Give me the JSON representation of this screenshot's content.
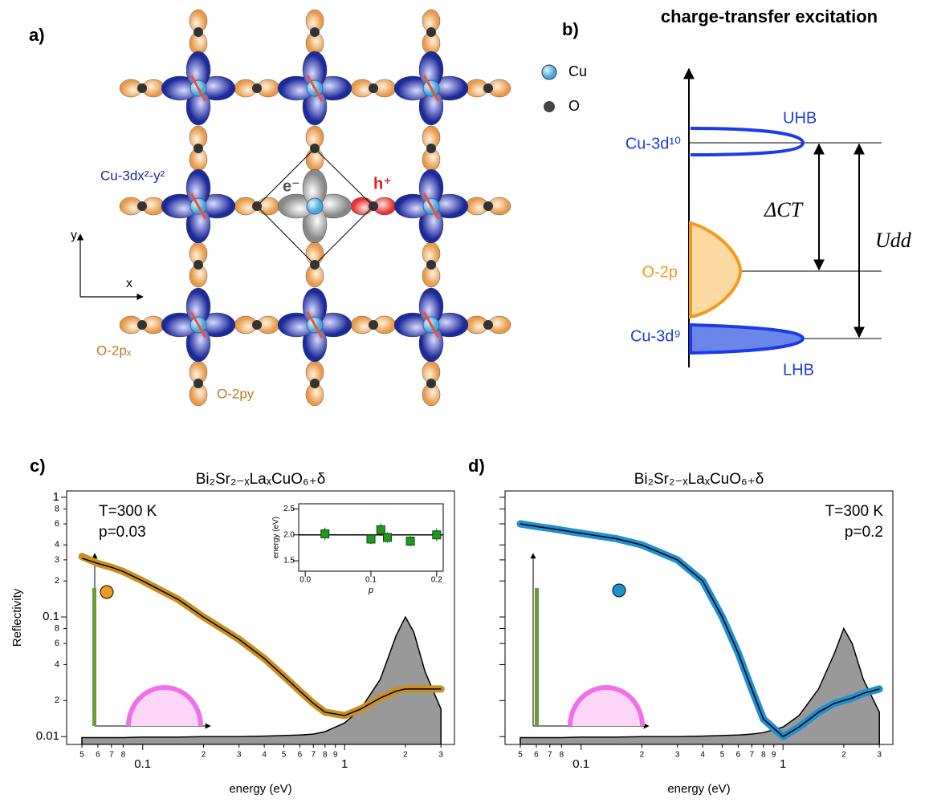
{
  "panel_a": {
    "label": "a)",
    "orbital_cu": "Cu-3dx²-y²",
    "electron": "e⁻",
    "hole": "h⁺",
    "axis_y": "y",
    "axis_x": "x",
    "orbital_px": "O-2pₓ",
    "orbital_py": "O-2py"
  },
  "panel_b": {
    "label": "b)",
    "title": "charge-transfer excitation",
    "legend": [
      "Cu",
      "O"
    ],
    "levels": {
      "uhb": "UHB",
      "cu_3d10": "Cu-3d¹⁰",
      "o_2p": "O-2p",
      "cu_3d9": "Cu-3d⁹",
      "lhb": "LHB"
    },
    "gaps": {
      "delta_ct": "ΔCT",
      "u_dd": "Udd"
    }
  },
  "chart_data": [
    {
      "type": "line",
      "panel_label": "c)",
      "title": "Bi₂Sr₂₋ₓLaₓCuO₆₊δ",
      "xlabel": "energy (eV)",
      "ylabel": "Reflectivity",
      "annotations": [
        "T=300 K",
        "p=0.03"
      ],
      "xlog": true,
      "ylog": true,
      "x": [
        0.05,
        0.06,
        0.07,
        0.08,
        0.1,
        0.15,
        0.2,
        0.3,
        0.4,
        0.5,
        0.6,
        0.7,
        0.8,
        1,
        1.2,
        1.5,
        1.8,
        2,
        2.2,
        2.5,
        3
      ],
      "series": [
        {
          "kind": "area",
          "color": "#999999",
          "values": [
            0.0098,
            0.0098,
            0.0098,
            0.0098,
            0.0099,
            0.0099,
            0.01,
            0.01,
            0.0101,
            0.0102,
            0.0103,
            0.0105,
            0.011,
            0.013,
            0.017,
            0.03,
            0.07,
            0.1,
            0.075,
            0.035,
            0.017
          ]
        },
        {
          "kind": "band",
          "color": "#c8901c",
          "values": [
            0.32,
            0.28,
            0.26,
            0.24,
            0.2,
            0.14,
            0.1,
            0.065,
            0.045,
            0.032,
            0.024,
            0.019,
            0.016,
            0.015,
            0.017,
            0.021,
            0.024,
            0.025,
            0.025,
            0.025,
            0.025
          ]
        },
        {
          "kind": "line",
          "color": "#000000",
          "values": [
            0.31,
            0.28,
            0.26,
            0.24,
            0.2,
            0.14,
            0.1,
            0.065,
            0.045,
            0.032,
            0.024,
            0.019,
            0.016,
            0.015,
            0.017,
            0.021,
            0.024,
            0.025,
            0.025,
            0.025,
            0.025
          ]
        }
      ],
      "xlim": [
        0.042,
        3.5
      ],
      "ylim": [
        0.0086,
        1.13
      ],
      "xticks": [
        {
          "value": 0.05,
          "label": "5"
        },
        {
          "value": 0.06,
          "label": "6"
        },
        {
          "value": 0.07,
          "label": "7"
        },
        {
          "value": 0.08,
          "label": "8"
        },
        0.1,
        {
          "value": 0.2,
          "label": "2"
        },
        {
          "value": 0.3,
          "label": "3"
        },
        {
          "value": 0.4,
          "label": "4"
        },
        {
          "value": 0.5,
          "label": "5"
        },
        {
          "value": 0.6,
          "label": "6"
        },
        {
          "value": 0.7,
          "label": "7"
        },
        {
          "value": 0.8,
          "label": "8"
        },
        {
          "value": 0.9,
          "label": "9"
        },
        1,
        {
          "value": 2,
          "label": "2"
        },
        {
          "value": 3,
          "label": "3"
        }
      ],
      "yticks": [
        0.01,
        {
          "value": 0.02,
          "label": "2"
        },
        {
          "value": 0.04,
          "label": "4"
        },
        {
          "value": 0.06,
          "label": "6"
        },
        {
          "value": 0.08,
          "label": "8"
        },
        0.1,
        {
          "value": 0.2,
          "label": "2"
        },
        {
          "value": 0.3,
          "label": "3"
        },
        {
          "value": 0.4,
          "label": "4"
        },
        {
          "value": 0.6,
          "label": "6"
        },
        {
          "value": 0.8,
          "label": "8"
        },
        1
      ]
    },
    {
      "type": "line",
      "panel_label": "d)",
      "title": "Bi₂Sr₂₋ₓLaₓCuO₆₊δ",
      "xlabel": "energy (eV)",
      "annotations": [
        "T=300 K",
        "p=0.2"
      ],
      "xlog": true,
      "ylog": true,
      "show_ytick_labels": false,
      "x": [
        0.05,
        0.06,
        0.07,
        0.08,
        0.1,
        0.15,
        0.2,
        0.3,
        0.4,
        0.5,
        0.6,
        0.7,
        0.8,
        1,
        1.2,
        1.5,
        1.8,
        2,
        2.2,
        2.5,
        3
      ],
      "series": [
        {
          "kind": "area",
          "color": "#999999",
          "values": [
            0.0098,
            0.0098,
            0.0098,
            0.0098,
            0.0099,
            0.0099,
            0.01,
            0.01,
            0.0101,
            0.0102,
            0.0103,
            0.0105,
            0.0108,
            0.012,
            0.015,
            0.025,
            0.05,
            0.08,
            0.06,
            0.03,
            0.016
          ]
        },
        {
          "kind": "band",
          "color": "#1f8fd0",
          "values": [
            0.6,
            0.57,
            0.55,
            0.53,
            0.5,
            0.45,
            0.4,
            0.3,
            0.2,
            0.1,
            0.05,
            0.025,
            0.014,
            0.01,
            0.012,
            0.016,
            0.019,
            0.02,
            0.021,
            0.023,
            0.025
          ]
        },
        {
          "kind": "line",
          "color": "#000000",
          "values": [
            0.6,
            0.57,
            0.55,
            0.53,
            0.5,
            0.45,
            0.4,
            0.3,
            0.2,
            0.1,
            0.05,
            0.025,
            0.014,
            0.01,
            0.012,
            0.016,
            0.019,
            0.02,
            0.021,
            0.023,
            0.025
          ]
        }
      ],
      "xlim": [
        0.042,
        3.5
      ],
      "ylim": [
        0.0086,
        1.13
      ],
      "xticks": [
        {
          "value": 0.05,
          "label": "5"
        },
        {
          "value": 0.06,
          "label": "6"
        },
        {
          "value": 0.07,
          "label": "7"
        },
        {
          "value": 0.08,
          "label": "8"
        },
        0.1,
        {
          "value": 0.2,
          "label": "2"
        },
        {
          "value": 0.3,
          "label": "3"
        },
        {
          "value": 0.4,
          "label": "4"
        },
        {
          "value": 0.5,
          "label": "5"
        },
        {
          "value": 0.6,
          "label": "6"
        },
        {
          "value": 0.7,
          "label": "7"
        },
        {
          "value": 0.8,
          "label": "8"
        },
        {
          "value": 0.9,
          "label": "9"
        },
        1,
        {
          "value": 2,
          "label": "2"
        },
        {
          "value": 3,
          "label": "3"
        }
      ],
      "yticks": [
        0.01,
        0.02,
        0.04,
        0.06,
        0.08,
        0.1,
        0.2,
        0.3,
        0.4,
        0.6,
        0.8,
        1
      ]
    },
    {
      "type": "scatter",
      "xlabel": "p",
      "ylabel": "energy (eV)",
      "x": [
        0.03,
        0.1,
        0.115,
        0.125,
        0.16,
        0.2
      ],
      "series": [
        {
          "color": "#1f9a1f",
          "values": [
            2.02,
            1.92,
            2.1,
            1.95,
            1.88,
            2.0
          ],
          "errors": [
            0.12,
            0.1,
            0.12,
            0.1,
            0.1,
            0.12
          ]
        }
      ],
      "reference_line": 2.0,
      "xlim": [
        -0.01,
        0.21
      ],
      "ylim": [
        1.3,
        2.6
      ],
      "xticks": [
        {
          "value": 0,
          "label": "0.0"
        },
        {
          "value": 0.1,
          "label": "0.1"
        },
        {
          "value": 0.2,
          "label": "0.2"
        }
      ],
      "yticks": [
        {
          "value": 1.5,
          "label": "1.5"
        },
        {
          "value": 2,
          "label": "2.0"
        },
        {
          "value": 2.5,
          "label": "2.5"
        }
      ]
    }
  ]
}
